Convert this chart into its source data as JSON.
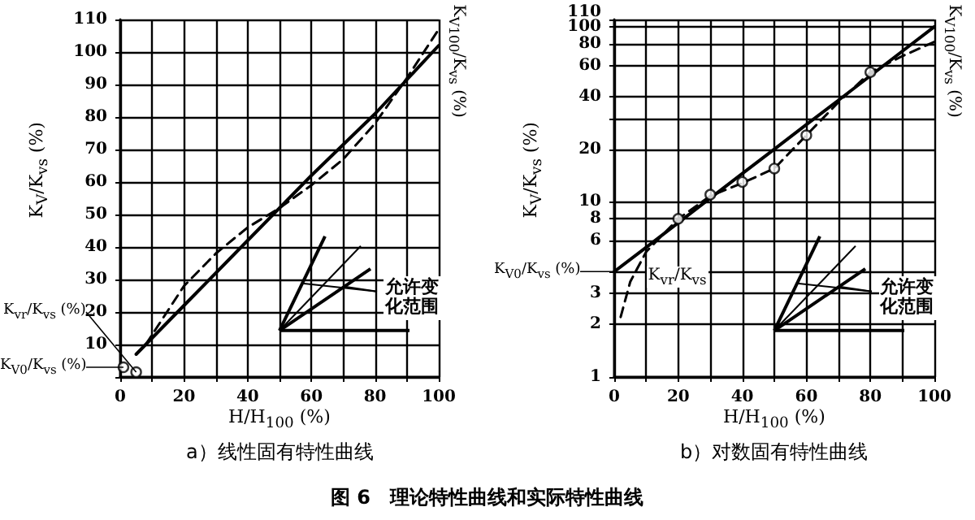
{
  "chart_data": [
    {
      "type": "line",
      "title": "图 6　理论特性曲线和实际特性曲线",
      "subtitle": "a）线性固有特性曲线",
      "xlabel": "H/H$_{100}$ (%)",
      "ylabel": "K$_{V}$/K$_{vs}$ (%)",
      "xlim": [
        0,
        100
      ],
      "xticks": [
        0,
        {
          "value": 10,
          "label": null
        },
        20,
        {
          "value": 30,
          "label": null
        },
        40,
        {
          "value": 50,
          "label": null
        },
        60,
        {
          "value": 70,
          "label": null
        },
        80,
        {
          "value": 90,
          "label": null
        },
        100
      ],
      "ylim": [
        0,
        110
      ],
      "yticks": [
        {
          "value": 0,
          "label": null
        },
        10,
        20,
        30,
        40,
        50,
        60,
        70,
        80,
        90,
        100,
        110
      ],
      "grid": true,
      "series": [
        {
          "color": "#000000",
          "line_style": "solid",
          "x": [
            5,
            20,
            40,
            60,
            80,
            100
          ],
          "values": [
            7,
            22,
            42,
            62,
            81,
            102
          ]
        },
        {
          "color": "#000000",
          "line_style": "dashed",
          "x": [
            8,
            20,
            30,
            40,
            50,
            60,
            70,
            80,
            90,
            100
          ],
          "values": [
            10,
            28,
            38,
            46,
            52,
            59,
            67,
            78,
            92,
            107
          ]
        },
        {
          "type": "scatter",
          "marker": "circle",
          "color": "#000000",
          "x": [
            1,
            5
          ],
          "values": [
            3,
            1.5
          ]
        }
      ],
      "annotations": [
        {
          "text": "K$_{V0}$/K$_{vs}$ (%)",
          "x": 1,
          "y": 3
        },
        {
          "text": "K$_{vr}$/K$_{vs}$ (%)",
          "x": 5,
          "y": 1.5
        },
        {
          "text": "K$_{V100}$/K$_{vs}$ (%)",
          "x": 100,
          "y": 102
        },
        "允许变化范围"
      ]
    },
    {
      "type": "line",
      "subtitle": "b）对数固有特性曲线",
      "xlabel": "H/H$_{100}$ (%)",
      "ylabel": "K$_{V}$/K$_{vs}$ (%)",
      "log": "y",
      "xlim": [
        0,
        100
      ],
      "xticks": [
        0,
        {
          "value": 10,
          "label": null
        },
        20,
        {
          "value": 30,
          "label": null
        },
        40,
        {
          "value": 50,
          "label": null
        },
        60,
        {
          "value": 70,
          "label": null
        },
        80,
        {
          "value": 90,
          "label": null
        },
        100
      ],
      "ylim": [
        1,
        110
      ],
      "yticks": [
        1,
        2,
        3,
        {
          "value": 4,
          "label": null
        },
        6,
        8,
        10,
        20,
        {
          "value": 30,
          "label": null
        },
        40,
        60,
        80,
        100,
        110
      ],
      "grid": true,
      "series": [
        {
          "color": "#000000",
          "line_style": "solid",
          "x": [
            0,
            10,
            20,
            30,
            40,
            50,
            60,
            70,
            80,
            90,
            100
          ],
          "values": [
            4,
            5.5,
            7.6,
            10.5,
            14.5,
            20,
            27.6,
            38,
            52.5,
            72.5,
            100
          ]
        },
        {
          "color": "#000000",
          "line_style": "dashed",
          "x": [
            2,
            5,
            10,
            20,
            30,
            40,
            50,
            60,
            70,
            80,
            90,
            100
          ],
          "values": [
            2.2,
            3.5,
            5.2,
            8,
            10.8,
            12.8,
            15.5,
            24,
            37,
            55,
            68,
            82
          ]
        },
        {
          "type": "scatter",
          "marker": "circle",
          "color": "#000000",
          "x": [
            20,
            30,
            40,
            50,
            60,
            80
          ],
          "values": [
            8,
            11,
            13,
            15.5,
            24,
            55
          ]
        }
      ],
      "annotations": [
        {
          "text": "K$_{V0}$/K$_{vs}$ (%)",
          "x": 0,
          "y": 4
        },
        {
          "text": "K$_{vr}$/K$_{vs}$",
          "x": 7,
          "y": 4.2
        },
        {
          "text": "K$_{V100}$/K$_{vs}$ (%)",
          "x": 100,
          "y": 82
        },
        "允许变化范围"
      ]
    }
  ]
}
